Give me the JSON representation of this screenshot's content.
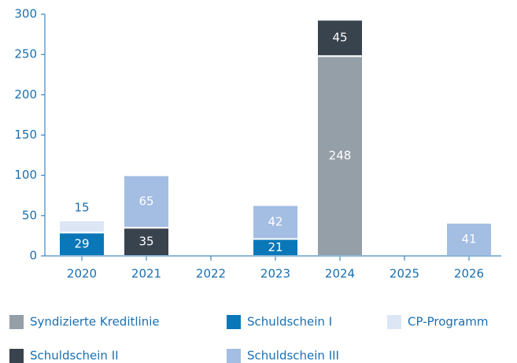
{
  "chart_data": {
    "type": "stacked_bar",
    "categories": [
      "2020",
      "2021",
      "2022",
      "2023",
      "2024",
      "2025",
      "2026"
    ],
    "series": [
      {
        "name": "Syndizierte Kreditlinie",
        "color": "#959fa8",
        "values": [
          null,
          null,
          null,
          null,
          248,
          null,
          null
        ]
      },
      {
        "name": "Schuldschein I",
        "color": "#0a77b8",
        "values": [
          29,
          null,
          null,
          21,
          null,
          null,
          null
        ]
      },
      {
        "name": "CP-Programm",
        "color": "#dce6f5",
        "values": [
          15,
          null,
          null,
          null,
          null,
          null,
          null
        ]
      },
      {
        "name": "Schuldschein II",
        "color": "#38434e",
        "values": [
          null,
          35,
          null,
          null,
          45,
          null,
          null
        ]
      },
      {
        "name": "Schuldschein III",
        "color": "#a3bde3",
        "values": [
          null,
          65,
          null,
          42,
          null,
          null,
          41
        ]
      }
    ],
    "ylim": [
      0,
      300
    ],
    "yticks": [
      0,
      50,
      100,
      150,
      200,
      250,
      300
    ]
  }
}
